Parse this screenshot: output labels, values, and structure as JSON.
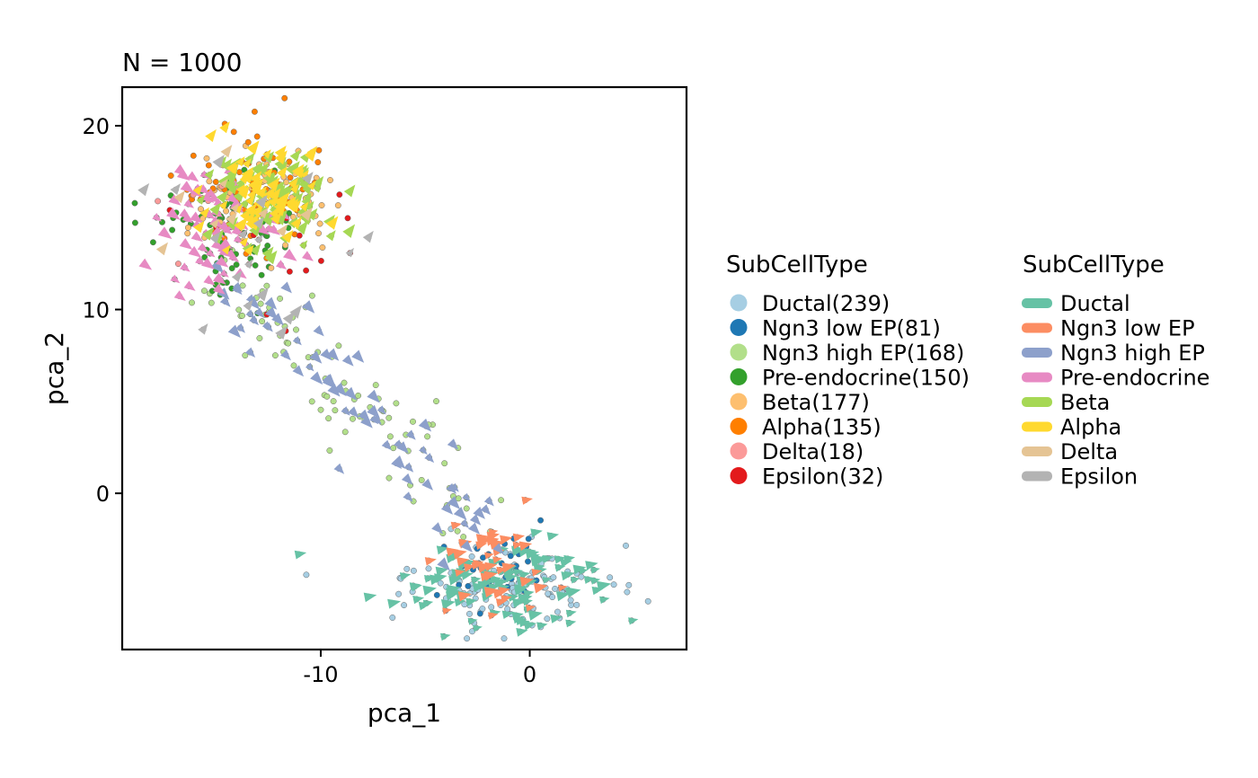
{
  "chart_data": {
    "type": "scatter",
    "title": "N = 1000",
    "xlabel": "pca_1",
    "ylabel": "pca_2",
    "xlim": [
      -19.5,
      7.5
    ],
    "ylim": [
      -8.5,
      22.1
    ],
    "x_ticks": [
      -10,
      0
    ],
    "y_ticks": [
      0,
      10,
      20
    ],
    "x_tick_labels": [
      "-10",
      "0"
    ],
    "y_tick_labels": [
      "0",
      "10",
      "20"
    ],
    "grid": false,
    "legend_position": "right",
    "point_legend": {
      "title": "SubCellType",
      "entries": [
        {
          "label": "Ductal(239)",
          "color": "#A6CEE3"
        },
        {
          "label": "Ngn3 low EP(81)",
          "color": "#1F78B4"
        },
        {
          "label": "Ngn3 high EP(168)",
          "color": "#B2DF8A"
        },
        {
          "label": "Pre-endocrine(150)",
          "color": "#33A02C"
        },
        {
          "label": "Beta(177)",
          "color": "#FDBF6F"
        },
        {
          "label": "Alpha(135)",
          "color": "#FF7F00"
        },
        {
          "label": "Delta(18)",
          "color": "#FB9A99"
        },
        {
          "label": "Epsilon(32)",
          "color": "#E31A1C"
        }
      ]
    },
    "velocity_legend": {
      "title": "SubCellType",
      "entries": [
        {
          "label": "Ductal",
          "color": "#66C2A5"
        },
        {
          "label": "Ngn3 low EP",
          "color": "#FC8D62"
        },
        {
          "label": "Ngn3 high EP",
          "color": "#8DA0CB"
        },
        {
          "label": "Pre-endocrine",
          "color": "#E78AC3"
        },
        {
          "label": "Beta",
          "color": "#A6D854"
        },
        {
          "label": "Alpha",
          "color": "#FFD92F"
        },
        {
          "label": "Delta",
          "color": "#E5C494"
        },
        {
          "label": "Epsilon",
          "color": "#B3B3B3"
        }
      ]
    },
    "series": [
      {
        "name": "Ductal(239)",
        "count": 239,
        "center": [
          -1,
          -5
        ],
        "spread": [
          2.4,
          1.2
        ],
        "arrow_color": "#66C2A5"
      },
      {
        "name": "Ngn3 low EP(81)",
        "count": 81,
        "center": [
          -2,
          -4
        ],
        "spread": [
          1.3,
          1.3
        ],
        "arrow_color": "#FC8D62"
      },
      {
        "name": "Ngn3 high EP(168)",
        "count": 168,
        "center": [
          -7,
          5
        ],
        "spread": [
          3,
          3.4
        ],
        "arrow_color": "#8DA0CB"
      },
      {
        "name": "Pre-endocrine(150)",
        "count": 150,
        "center": [
          -14.5,
          14
        ],
        "spread": [
          1.6,
          1.6
        ],
        "arrow_color": "#E78AC3"
      },
      {
        "name": "Beta(177)",
        "count": 177,
        "center": [
          -12.5,
          16
        ],
        "spread": [
          1.8,
          1.4
        ],
        "arrow_color": "#A6D854"
      },
      {
        "name": "Alpha(135)",
        "count": 135,
        "center": [
          -13,
          16.5
        ],
        "spread": [
          1.5,
          1.6
        ],
        "arrow_color": "#FFD92F"
      },
      {
        "name": "Delta(18)",
        "count": 18,
        "center": [
          -14,
          15
        ],
        "spread": [
          1.8,
          1.8
        ],
        "arrow_color": "#E5C494"
      },
      {
        "name": "Epsilon(32)",
        "count": 32,
        "center": [
          -12,
          13
        ],
        "spread": [
          2.5,
          2.5
        ],
        "arrow_color": "#B3B3B3"
      }
    ]
  }
}
